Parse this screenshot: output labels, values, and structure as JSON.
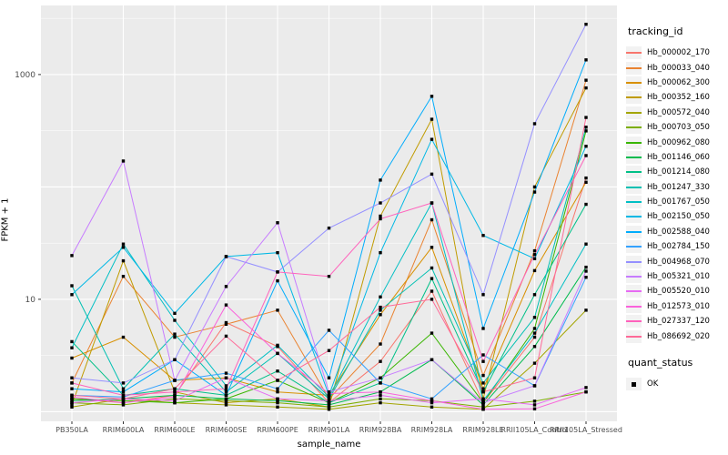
{
  "chart_data": {
    "type": "line",
    "xlabel": "sample_name",
    "ylabel": "FPKM + 1",
    "y_scale": "log10",
    "y_tick_labels": [
      "1000",
      "10"
    ],
    "y_tick_values": [
      1000,
      10
    ],
    "y_major_gridline_values": [
      1000,
      100,
      10,
      1
    ],
    "y_minor_gridline_values": [
      3162,
      316,
      31.6,
      3.16
    ],
    "y_axis_range_approx": [
      0.85,
      4000
    ],
    "grid": true,
    "legend_position": "right",
    "marker": "small-black-square",
    "categories": [
      "PB350LA",
      "RRIM600LA",
      "RRIM600LE",
      "RRIM600SE",
      "RRIM600PE",
      "RRIM901LA",
      "RRIM928BA",
      "RRIM928LA",
      "RRIM928LE",
      "RRII105LA_Control",
      "RRII105LA_Stressed"
    ],
    "series": [
      {
        "name": "Hb_000002_170",
        "color": "#F8766D",
        "values": [
          1.3,
          1.2,
          1.4,
          6.2,
          3.8,
          1.2,
          2.8,
          11.8,
          1.2,
          4.6,
          120
        ]
      },
      {
        "name": "Hb_000033_040",
        "color": "#EA8331",
        "values": [
          1.8,
          16,
          4.6,
          6.0,
          8.0,
          1.3,
          4.0,
          51,
          2.1,
          27,
          890
        ]
      },
      {
        "name": "Hb_000062_300",
        "color": "#D89000",
        "values": [
          3.0,
          4.6,
          1.9,
          2.0,
          1.5,
          1.4,
          7.3,
          29,
          1.6,
          18,
          110
        ]
      },
      {
        "name": "Hb_000352_160",
        "color": "#C09B00",
        "values": [
          1.15,
          22,
          1.5,
          1.2,
          1.3,
          1.1,
          55,
          400,
          1.3,
          100,
          760
        ]
      },
      {
        "name": "Hb_000572_040",
        "color": "#A3A500",
        "values": [
          1.1,
          1.3,
          1.2,
          1.15,
          1.1,
          1.05,
          1.2,
          1.1,
          1.05,
          2.7,
          8
        ]
      },
      {
        "name": "Hb_000703_050",
        "color": "#7CAE00",
        "values": [
          1.2,
          1.15,
          1.3,
          1.25,
          1.2,
          1.1,
          1.3,
          1.25,
          1.1,
          1.24,
          1.5
        ]
      },
      {
        "name": "Hb_000962_080",
        "color": "#39B600",
        "values": [
          1.3,
          1.25,
          1.2,
          1.3,
          1.9,
          1.2,
          2.0,
          5.0,
          1.2,
          5.5,
          315
        ]
      },
      {
        "name": "Hb_001146_060",
        "color": "#00BB4E",
        "values": [
          1.25,
          1.3,
          1.4,
          1.3,
          1.25,
          1.15,
          1.5,
          2.9,
          1.15,
          3.8,
          19.3
        ]
      },
      {
        "name": "Hb_001214_080",
        "color": "#00C087",
        "values": [
          4.2,
          1.4,
          1.6,
          1.4,
          2.3,
          1.2,
          1.8,
          15.3,
          1.5,
          11,
          70
        ]
      },
      {
        "name": "Hb_001247_330",
        "color": "#00C0B2",
        "values": [
          13.2,
          1.6,
          4.9,
          1.5,
          3.3,
          1.3,
          8.0,
          19,
          1.8,
          6.9,
          340
        ]
      },
      {
        "name": "Hb_001767_050",
        "color": "#00BFC4",
        "values": [
          3.7,
          31,
          6.5,
          1.7,
          3.9,
          1.35,
          10.5,
          72,
          1.25,
          5.0,
          31
        ]
      },
      {
        "name": "Hb_002150_050",
        "color": "#00B8E5",
        "values": [
          11,
          29,
          7.5,
          24,
          26,
          1.4,
          26,
          265,
          37,
          23,
          230
        ]
      },
      {
        "name": "Hb_002588_040",
        "color": "#00ACFC",
        "values": [
          1.6,
          1.5,
          2.9,
          1.4,
          14.6,
          2.0,
          115,
          640,
          5.5,
          90,
          1350
        ]
      },
      {
        "name": "Hb_002784_150",
        "color": "#35A2FF",
        "values": [
          1.4,
          1.35,
          1.9,
          2.2,
          1.6,
          5.3,
          1.8,
          1.3,
          3.2,
          1.7,
          15.7
        ]
      },
      {
        "name": "Hb_004968_070",
        "color": "#9590FF",
        "values": [
          2.0,
          1.8,
          2.9,
          24,
          17.5,
          43,
          72,
          130,
          11,
          365,
          2800
        ]
      },
      {
        "name": "Hb_005321_010",
        "color": "#C77CFF",
        "values": [
          24.5,
          170,
          1.9,
          13,
          48,
          1.5,
          2.0,
          2.9,
          1.2,
          1.7,
          17.8
        ]
      },
      {
        "name": "Hb_005520_010",
        "color": "#E76BF3",
        "values": [
          1.2,
          1.3,
          1.25,
          2.0,
          1.3,
          1.25,
          1.4,
          1.2,
          1.3,
          1.15,
          1.64
        ]
      },
      {
        "name": "Hb_012573_010",
        "color": "#FA62DB",
        "values": [
          1.35,
          1.2,
          1.35,
          8.9,
          3.3,
          1.45,
          1.5,
          1.25,
          1.05,
          1.06,
          1.5
        ]
      },
      {
        "name": "Hb_027337_120",
        "color": "#FF62BC",
        "values": [
          1.8,
          1.4,
          1.5,
          1.6,
          17.5,
          16,
          52,
          72,
          2.8,
          25,
          190
        ]
      },
      {
        "name": "Hb_086692_020",
        "color": "#FF6A98",
        "values": [
          1.4,
          1.3,
          1.6,
          4.7,
          1.9,
          3.5,
          8.5,
          10,
          1.5,
          2.0,
          415
        ]
      }
    ],
    "legend_tracking_title": "tracking_id",
    "legend_quant_title": "quant_status",
    "legend_quant_items": [
      "OK"
    ]
  },
  "colors": {
    "panel_background": "#EBEBEB",
    "gridline": "#FFFFFF",
    "marker": "#000000",
    "axis_text": "#4D4D4D",
    "tick_mark": "#333333",
    "legend_key_background": "#F2F2F2"
  }
}
